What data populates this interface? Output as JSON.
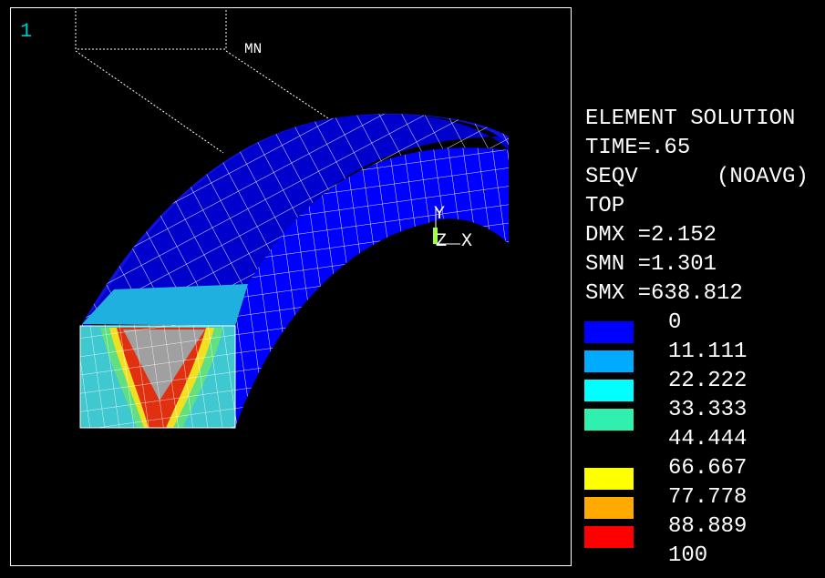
{
  "window_number": "1",
  "min_label": "MN",
  "triad": {
    "y": "Y",
    "z": "Z",
    "x": "X"
  },
  "legend": {
    "lines": [
      "ELEMENT SOLUTION",
      "TIME=.65",
      "SEQV      (NOAVG)",
      "TOP",
      "DMX =2.152",
      "SMN =1.301",
      "SMX =638.812"
    ],
    "levels": [
      "0",
      "11.111",
      "22.222",
      "33.333",
      "44.444",
      "66.667",
      "77.778",
      "88.889",
      "100"
    ],
    "colors": [
      "#0000ff",
      "#00aaff",
      "#00ffff",
      "#30f0b0",
      "#ffff00",
      "#ffaa00",
      "#ff0000"
    ]
  }
}
